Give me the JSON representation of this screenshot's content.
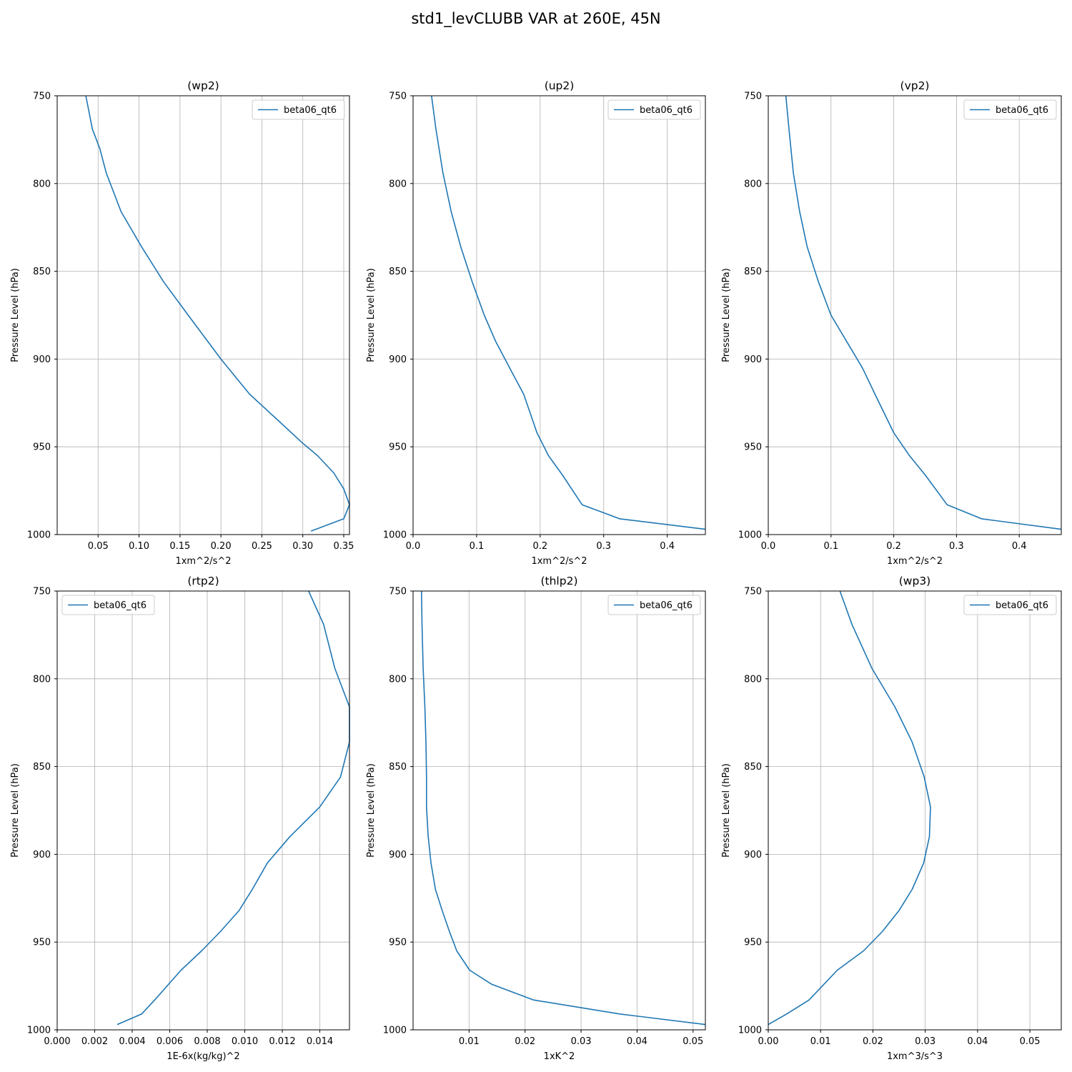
{
  "figure": {
    "title": "std1_levCLUBB VAR at 260E, 45N"
  },
  "chart_data": [
    {
      "type": "line",
      "title": "(wp2)",
      "xlabel": "1xm^2/s^2",
      "ylabel": "Pressure Level (hPa)",
      "xlim": [
        0.0,
        0.357
      ],
      "ylim": [
        1000,
        750
      ],
      "xticks": [
        0.05,
        0.1,
        0.15,
        0.2,
        0.25,
        0.3,
        0.35
      ],
      "xtick_labels": [
        "0.05",
        "0.10",
        "0.15",
        "0.20",
        "0.25",
        "0.30",
        "0.35"
      ],
      "yticks": [
        750,
        800,
        850,
        900,
        950,
        1000
      ],
      "ytick_labels": [
        "750",
        "800",
        "850",
        "900",
        "950",
        "1000"
      ],
      "grid": true,
      "legend": "upper right",
      "series": [
        {
          "name": "beta06_qt6",
          "color": "#1f77b4",
          "x": [
            0.035,
            0.043,
            0.052,
            0.06,
            0.078,
            0.103,
            0.13,
            0.16,
            0.2,
            0.235,
            0.27,
            0.3,
            0.318,
            0.338,
            0.35,
            0.357,
            0.35,
            0.31
          ],
          "y": [
            750,
            769,
            780,
            794,
            816,
            836,
            856,
            875,
            900,
            920,
            935,
            948,
            955,
            965,
            974,
            983,
            991,
            998
          ]
        }
      ]
    },
    {
      "type": "line",
      "title": "(up2)",
      "xlabel": "1xm^2/s^2",
      "ylabel": "Pressure Level (hPa)",
      "xlim": [
        0.0,
        0.46
      ],
      "ylim": [
        1000,
        750
      ],
      "xticks": [
        0.0,
        0.1,
        0.2,
        0.3,
        0.4
      ],
      "xtick_labels": [
        "0.0",
        "0.1",
        "0.2",
        "0.3",
        "0.4"
      ],
      "yticks": [
        750,
        800,
        850,
        900,
        950,
        1000
      ],
      "ytick_labels": [
        "750",
        "800",
        "850",
        "900",
        "950",
        "1000"
      ],
      "grid": true,
      "legend": "upper right",
      "series": [
        {
          "name": "beta06_qt6",
          "color": "#1f77b4",
          "x": [
            0.029,
            0.036,
            0.047,
            0.06,
            0.075,
            0.093,
            0.112,
            0.13,
            0.152,
            0.174,
            0.195,
            0.213,
            0.235,
            0.266,
            0.325,
            0.46
          ],
          "y": [
            750,
            769,
            794,
            816,
            836,
            856,
            875,
            890,
            905,
            920,
            942,
            955,
            966,
            983,
            991,
            997
          ]
        }
      ]
    },
    {
      "type": "line",
      "title": "(vp2)",
      "xlabel": "1xm^2/s^2",
      "ylabel": "Pressure Level (hPa)",
      "xlim": [
        0.0,
        0.467
      ],
      "ylim": [
        1000,
        750
      ],
      "xticks": [
        0.0,
        0.1,
        0.2,
        0.3,
        0.4
      ],
      "xtick_labels": [
        "0.0",
        "0.1",
        "0.2",
        "0.3",
        "0.4"
      ],
      "yticks": [
        750,
        800,
        850,
        900,
        950,
        1000
      ],
      "ytick_labels": [
        "750",
        "800",
        "850",
        "900",
        "950",
        "1000"
      ],
      "grid": true,
      "legend": "upper right",
      "series": [
        {
          "name": "beta06_qt6",
          "color": "#1f77b4",
          "x": [
            0.028,
            0.033,
            0.04,
            0.05,
            0.062,
            0.08,
            0.1,
            0.125,
            0.15,
            0.17,
            0.2,
            0.225,
            0.25,
            0.285,
            0.34,
            0.467
          ],
          "y": [
            750,
            769,
            794,
            816,
            836,
            856,
            875,
            890,
            905,
            920,
            942,
            955,
            966,
            983,
            991,
            997
          ]
        }
      ]
    },
    {
      "type": "line",
      "title": "(rtp2)",
      "xlabel": "1E-6x(kg/kg)^2",
      "ylabel": "Pressure Level (hPa)",
      "xlim": [
        0.0,
        0.01558
      ],
      "ylim": [
        1000,
        750
      ],
      "xticks": [
        0.0,
        0.002,
        0.004,
        0.006,
        0.008,
        0.01,
        0.012,
        0.014
      ],
      "xtick_labels": [
        "0.000",
        "0.002",
        "0.004",
        "0.006",
        "0.008",
        "0.010",
        "0.012",
        "0.014"
      ],
      "yticks": [
        750,
        800,
        850,
        900,
        950,
        1000
      ],
      "ytick_labels": [
        "750",
        "800",
        "850",
        "900",
        "950",
        "1000"
      ],
      "grid": true,
      "legend": "upper left",
      "series": [
        {
          "name": "beta06_qt6",
          "color": "#1f77b4",
          "x": [
            0.0134,
            0.0142,
            0.0148,
            0.01558,
            0.01558,
            0.0151,
            0.014,
            0.0124,
            0.0112,
            0.0104,
            0.0097,
            0.0087,
            0.0077,
            0.0066,
            0.0052,
            0.0045,
            0.0032
          ],
          "y": [
            750,
            769,
            794,
            816,
            836,
            856,
            873,
            890,
            905,
            920,
            932,
            944,
            955,
            966,
            983,
            991,
            997
          ]
        }
      ]
    },
    {
      "type": "line",
      "title": "(thlp2)",
      "xlabel": "1xK^2",
      "ylabel": "Pressure Level (hPa)",
      "xlim": [
        0.0,
        0.0522
      ],
      "ylim": [
        1000,
        750
      ],
      "xticks": [
        0.01,
        0.02,
        0.03,
        0.04,
        0.05
      ],
      "xtick_labels": [
        "0.01",
        "0.02",
        "0.03",
        "0.04",
        "0.05"
      ],
      "yticks": [
        750,
        800,
        850,
        900,
        950,
        1000
      ],
      "ytick_labels": [
        "750",
        "800",
        "850",
        "900",
        "950",
        "1000"
      ],
      "grid": true,
      "legend": "upper right",
      "series": [
        {
          "name": "beta06_qt6",
          "color": "#1f77b4",
          "x": [
            0.0015,
            0.0016,
            0.0018,
            0.0021,
            0.0023,
            0.0024,
            0.0024,
            0.0027,
            0.0032,
            0.004,
            0.0052,
            0.0065,
            0.0078,
            0.0101,
            0.014,
            0.0215,
            0.037,
            0.0522
          ],
          "y": [
            750,
            769,
            794,
            816,
            836,
            856,
            873,
            890,
            905,
            920,
            932,
            944,
            955,
            966,
            974,
            983,
            991,
            997
          ]
        }
      ]
    },
    {
      "type": "line",
      "title": "(wp3)",
      "xlabel": "1xm^3/s^3",
      "ylabel": "Pressure Level (hPa)",
      "xlim": [
        0.0,
        0.056
      ],
      "ylim": [
        1000,
        750
      ],
      "xticks": [
        0.0,
        0.01,
        0.02,
        0.03,
        0.04,
        0.05
      ],
      "xtick_labels": [
        "0.00",
        "0.01",
        "0.02",
        "0.03",
        "0.04",
        "0.05"
      ],
      "yticks": [
        750,
        800,
        850,
        900,
        950,
        1000
      ],
      "ytick_labels": [
        "750",
        "800",
        "850",
        "900",
        "950",
        "1000"
      ],
      "grid": true,
      "legend": "upper right",
      "series": [
        {
          "name": "beta06_qt6",
          "color": "#1f77b4",
          "x": [
            0.0137,
            0.016,
            0.0198,
            0.0242,
            0.0275,
            0.0298,
            0.031,
            0.0308,
            0.0297,
            0.0275,
            0.025,
            0.0218,
            0.0182,
            0.0132,
            0.0078,
            0.0035,
            0.0
          ],
          "y": [
            750,
            769,
            794,
            816,
            836,
            856,
            873,
            890,
            905,
            920,
            932,
            944,
            955,
            966,
            983,
            991,
            997
          ]
        }
      ]
    }
  ]
}
